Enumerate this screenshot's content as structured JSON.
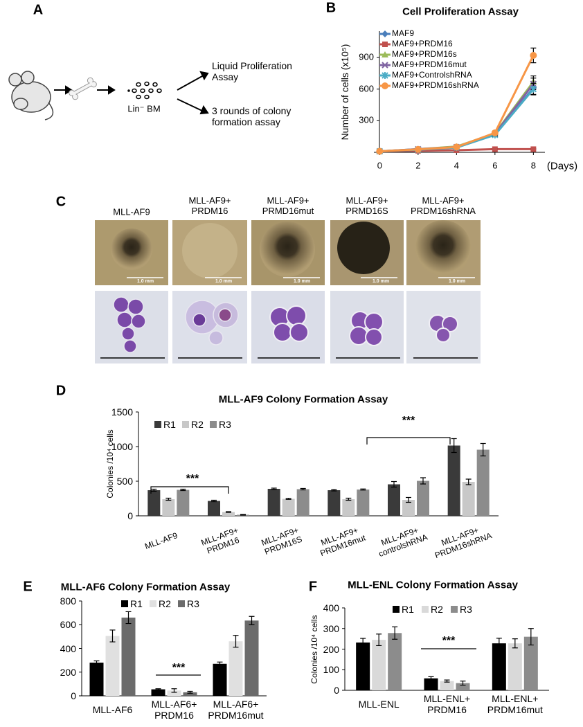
{
  "panels": {
    "A": {
      "label": "A",
      "lin_bm": "Lin⁻ BM",
      "liquid": "Liquid Proliferation\nAssay",
      "colony": "3 rounds of colony\nformation assay"
    },
    "C": {
      "label": "C",
      "columns": [
        "MLL-AF9",
        "MLL-AF9+\nPRDM16",
        "MLL-AF9+\nPRMD16mut",
        "MLL-AF9+\nPRMD16S",
        "MLL-AF9+\nPRDM16shRNA"
      ],
      "scale_bars": [
        "1.0 mm",
        "1.0 mm",
        "1.0 mm",
        "1.0 mm",
        "1.0 mm"
      ]
    }
  },
  "chart_data": [
    {
      "type": "line",
      "panel": "B",
      "title": "Cell Proliferation Assay",
      "y_label": "Number of cells (x10⁵)",
      "x_label": "(Days)",
      "x": [
        0,
        2,
        4,
        6,
        8
      ],
      "xlim": [
        -0.3,
        8.6
      ],
      "xticks": [
        0,
        2,
        4,
        6,
        8
      ],
      "ylim": [
        0,
        1150
      ],
      "yticks": [
        300,
        600,
        900
      ],
      "series": [
        {
          "name": "MAF9",
          "color": "#4a7ebb",
          "marker": "diamond",
          "values": [
            10,
            25,
            45,
            170,
            610
          ],
          "errors": [
            2,
            4,
            6,
            12,
            60
          ]
        },
        {
          "name": "MAF9+PRDM16",
          "color": "#c0504d",
          "marker": "square",
          "values": [
            10,
            15,
            20,
            30,
            30
          ],
          "errors": [
            2,
            3,
            3,
            4,
            5
          ]
        },
        {
          "name": "MAF9+PRDM16s",
          "color": "#9bbb59",
          "marker": "triangle",
          "values": [
            10,
            30,
            55,
            180,
            670
          ],
          "errors": [
            2,
            4,
            6,
            12,
            55
          ]
        },
        {
          "name": "MAF9+PRDM16mut",
          "color": "#8064a2",
          "marker": "cross",
          "values": [
            10,
            30,
            50,
            175,
            650
          ],
          "errors": [
            2,
            4,
            6,
            12,
            55
          ]
        },
        {
          "name": "MAF9+ControlshRNA",
          "color": "#4bacc6",
          "marker": "star",
          "values": [
            10,
            25,
            45,
            165,
            600
          ],
          "errors": [
            2,
            4,
            6,
            12,
            55
          ]
        },
        {
          "name": "MAF9+PRDM16shRNA",
          "color": "#f79646",
          "marker": "circle",
          "values": [
            10,
            28,
            50,
            185,
            920
          ],
          "errors": [
            2,
            4,
            6,
            14,
            70
          ]
        }
      ]
    },
    {
      "type": "bar",
      "panel": "D",
      "title": "MLL-AF9 Colony Formation Assay",
      "y_label": "Colonies /10⁴ cells",
      "categories": [
        "MLL-AF9",
        "MLL-AF9+\nPRDM16",
        "MLL-AF9+\nPRDM16S",
        "MLL-AF9+\nPRDM16mut",
        "MLL-AF9+\ncontrolshRNA",
        "MLL-AF9+\nPRDM16shRNA"
      ],
      "ylim": [
        0,
        1500
      ],
      "yticks": [
        0,
        500,
        1000,
        1500
      ],
      "annotations": [
        "***",
        "***"
      ],
      "series": [
        {
          "name": "R1",
          "color": "#3a3a3a",
          "values": [
            370,
            215,
            390,
            370,
            455,
            1015
          ],
          "errors": [
            15,
            10,
            10,
            10,
            40,
            100
          ]
        },
        {
          "name": "R2",
          "color": "#c8c8c8",
          "values": [
            240,
            55,
            245,
            240,
            230,
            490
          ],
          "errors": [
            15,
            5,
            8,
            15,
            35,
            40
          ]
        },
        {
          "name": "R3",
          "color": "#8c8c8c",
          "values": [
            375,
            15,
            385,
            380,
            505,
            955
          ],
          "errors": [
            10,
            5,
            10,
            8,
            45,
            90
          ]
        }
      ]
    },
    {
      "type": "bar",
      "panel": "E",
      "title": "MLL-AF6 Colony Formation Assay",
      "categories": [
        "MLL-AF6",
        "MLL-AF6+\nPRDM16",
        "MLL-AF6+\nPRDM16mut"
      ],
      "ylim": [
        0,
        800
      ],
      "yticks": [
        0,
        200,
        400,
        600,
        800
      ],
      "annotations": [
        "***"
      ],
      "series": [
        {
          "name": "R1",
          "color": "#000000",
          "values": [
            280,
            55,
            270
          ],
          "errors": [
            15,
            5,
            15
          ]
        },
        {
          "name": "R2",
          "color": "#e0e0e0",
          "values": [
            505,
            45,
            460
          ],
          "errors": [
            50,
            15,
            50
          ]
        },
        {
          "name": "R3",
          "color": "#6b6b6b",
          "values": [
            660,
            30,
            635
          ],
          "errors": [
            50,
            8,
            35
          ]
        }
      ]
    },
    {
      "type": "bar",
      "panel": "F",
      "title": "MLL-ENL Colony Formation Assay",
      "y_label": "Colonies /10⁴ cells",
      "categories": [
        "MLL-ENL",
        "MLL-ENL+\nPRDM16",
        "MLL-ENL+\nPRDM16mut"
      ],
      "ylim": [
        0,
        400
      ],
      "yticks": [
        0,
        100,
        200,
        300,
        400
      ],
      "annotations": [
        "***"
      ],
      "series": [
        {
          "name": "R1",
          "color": "#000000",
          "values": [
            232,
            58,
            228
          ],
          "errors": [
            20,
            8,
            25
          ]
        },
        {
          "name": "R2",
          "color": "#d9d9d9",
          "values": [
            245,
            45,
            228
          ],
          "errors": [
            28,
            5,
            22
          ]
        },
        {
          "name": "R3",
          "color": "#8c8c8c",
          "values": [
            278,
            35,
            260
          ],
          "errors": [
            30,
            10,
            40
          ]
        }
      ]
    }
  ]
}
